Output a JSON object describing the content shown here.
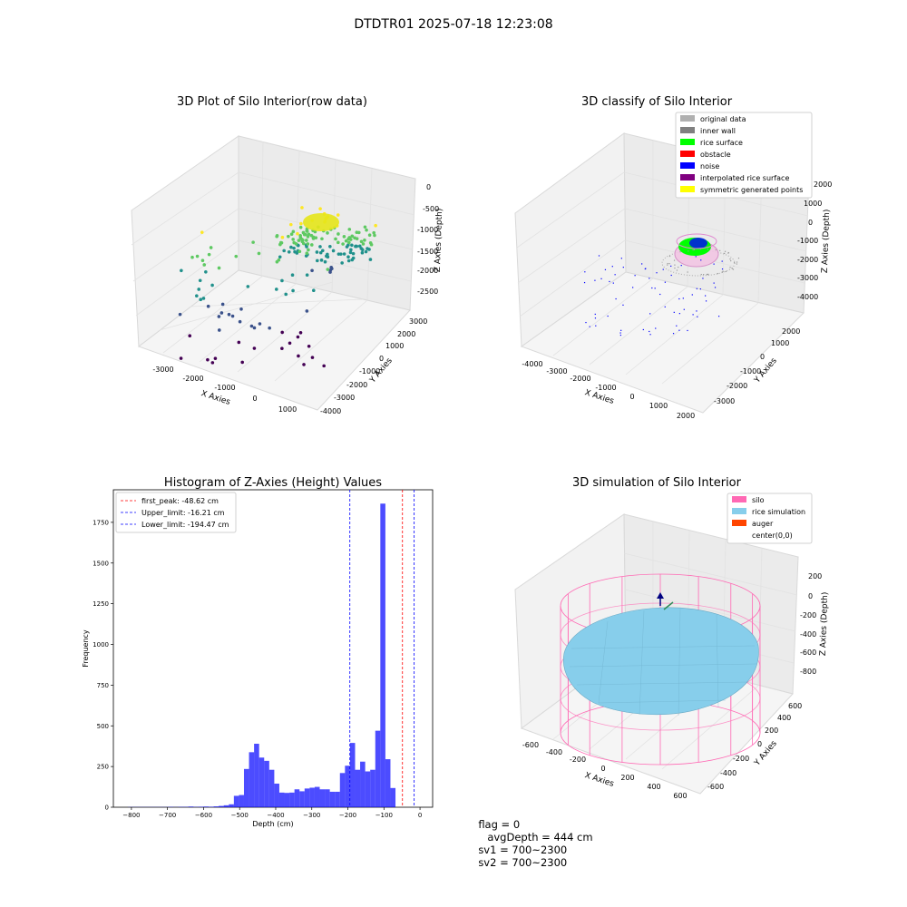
{
  "figure_title": "DTDTR01 2025-07-18 12:23:08",
  "status": {
    "flag": "flag = 0",
    "avg_depth": "avgDepth = 444 cm",
    "sv1": "sv1 = 700~2300",
    "sv2": "sv2 = 700~2300"
  },
  "chart_data": [
    {
      "type": "scatter",
      "title": "3D Plot of Silo Interior(row data)",
      "xlabel": "X Axies",
      "ylabel": "Y Axies",
      "zlabel": "Z Axies (Depth)",
      "x_ticks": [
        "-3000",
        "-2000",
        "-1000",
        "0",
        "1000"
      ],
      "y_ticks": [
        "-4000",
        "-3000",
        "-2000",
        "-1000",
        "0",
        "1000",
        "2000",
        "3000"
      ],
      "z_ticks": [
        "0",
        "-500",
        "-1000",
        "-1500",
        "-2000",
        "-2500"
      ],
      "colormap": [
        "#440154",
        "#3b528b",
        "#21918c",
        "#5ec962",
        "#fde725"
      ]
    },
    {
      "type": "scatter",
      "title": "3D classify of Silo Interior",
      "xlabel": "X Axies",
      "ylabel": "Y Axies",
      "zlabel": "Z Axies (Depth)",
      "x_ticks": [
        "-4000",
        "-3000",
        "-2000",
        "-1000",
        "0",
        "1000",
        "2000"
      ],
      "y_ticks": [
        "-3000",
        "-2000",
        "-1000",
        "0",
        "1000",
        "2000"
      ],
      "z_ticks": [
        "2000",
        "1000",
        "0",
        "-1000",
        "-2000",
        "-3000",
        "-4000"
      ],
      "legend": [
        {
          "label": "original data",
          "color": "#b0b0b0"
        },
        {
          "label": "inner wall",
          "color": "#808080"
        },
        {
          "label": "rice surface",
          "color": "#00ff00"
        },
        {
          "label": "obstacle",
          "color": "#ff0000"
        },
        {
          "label": "noise",
          "color": "#0000ff"
        },
        {
          "label": "interpolated rice surface",
          "color": "#800080"
        },
        {
          "label": "symmetric generated points",
          "color": "#ffff00"
        }
      ]
    },
    {
      "type": "bar",
      "title": "Histogram of Z-Axies (Height) Values",
      "xlabel": "Depth (cm)",
      "ylabel": "Frequency",
      "xlim": [
        -850,
        35
      ],
      "ylim": [
        0,
        1950
      ],
      "x_ticks": [
        -800,
        -700,
        -600,
        -500,
        -400,
        -300,
        -200,
        -100,
        0
      ],
      "y_ticks": [
        0,
        250,
        500,
        750,
        1000,
        1250,
        1500,
        1750
      ],
      "bar_color": "#0000ff",
      "bin_width": 14,
      "bins": [
        {
          "x": -810,
          "value": 1
        },
        {
          "x": -796,
          "value": 1
        },
        {
          "x": -782,
          "value": 1
        },
        {
          "x": -768,
          "value": 1
        },
        {
          "x": -754,
          "value": 1
        },
        {
          "x": -740,
          "value": 1
        },
        {
          "x": -726,
          "value": 1
        },
        {
          "x": -712,
          "value": 1
        },
        {
          "x": -698,
          "value": 2
        },
        {
          "x": -684,
          "value": 1
        },
        {
          "x": -670,
          "value": 2
        },
        {
          "x": -656,
          "value": 2
        },
        {
          "x": -642,
          "value": 4
        },
        {
          "x": -628,
          "value": 2
        },
        {
          "x": -614,
          "value": 3
        },
        {
          "x": -600,
          "value": 4
        },
        {
          "x": -586,
          "value": 3
        },
        {
          "x": -572,
          "value": 5
        },
        {
          "x": -558,
          "value": 8
        },
        {
          "x": -544,
          "value": 12
        },
        {
          "x": -530,
          "value": 18
        },
        {
          "x": -516,
          "value": 70
        },
        {
          "x": -502,
          "value": 75
        },
        {
          "x": -488,
          "value": 235
        },
        {
          "x": -474,
          "value": 338
        },
        {
          "x": -460,
          "value": 390
        },
        {
          "x": -446,
          "value": 305
        },
        {
          "x": -432,
          "value": 285
        },
        {
          "x": -418,
          "value": 230
        },
        {
          "x": -404,
          "value": 145
        },
        {
          "x": -390,
          "value": 90
        },
        {
          "x": -376,
          "value": 88
        },
        {
          "x": -362,
          "value": 90
        },
        {
          "x": -348,
          "value": 110
        },
        {
          "x": -334,
          "value": 98
        },
        {
          "x": -320,
          "value": 115
        },
        {
          "x": -306,
          "value": 120
        },
        {
          "x": -292,
          "value": 125
        },
        {
          "x": -278,
          "value": 110
        },
        {
          "x": -264,
          "value": 110
        },
        {
          "x": -250,
          "value": 95
        },
        {
          "x": -236,
          "value": 95
        },
        {
          "x": -222,
          "value": 210
        },
        {
          "x": -208,
          "value": 255
        },
        {
          "x": -194,
          "value": 395
        },
        {
          "x": -180,
          "value": 230
        },
        {
          "x": -166,
          "value": 280
        },
        {
          "x": -152,
          "value": 220
        },
        {
          "x": -138,
          "value": 230
        },
        {
          "x": -124,
          "value": 470
        },
        {
          "x": -110,
          "value": 1865
        },
        {
          "x": -96,
          "value": 295
        },
        {
          "x": -82,
          "value": 118
        }
      ],
      "vlines": [
        {
          "label": "first_peak: -48.62 cm",
          "x": -48.62,
          "color": "#ff0000"
        },
        {
          "label": "Upper_limit: -16.21 cm",
          "x": -16.21,
          "color": "#0000ff"
        },
        {
          "label": "Lower_limit: -194.47 cm",
          "x": -194.47,
          "color": "#0000ff"
        }
      ]
    },
    {
      "type": "scatter",
      "title": "3D simulation of Silo Interior",
      "xlabel": "X Axies",
      "ylabel": "Y Axies",
      "zlabel": "Z Axies (Depth)",
      "x_ticks": [
        "-600",
        "-400",
        "-200",
        "0",
        "200",
        "400",
        "600"
      ],
      "y_ticks": [
        "-600",
        "-400",
        "-200",
        "0",
        "200",
        "400",
        "600"
      ],
      "z_ticks": [
        "200",
        "0",
        "-200",
        "-400",
        "-600",
        "-800"
      ],
      "legend": [
        {
          "label": "silo",
          "color": "#ff69b4"
        },
        {
          "label": "rice simulation",
          "color": "#87ceeb"
        },
        {
          "label": "auger",
          "color": "#ff4500"
        },
        {
          "label": "center(0,0)",
          "color": "#ffffff"
        }
      ]
    }
  ]
}
